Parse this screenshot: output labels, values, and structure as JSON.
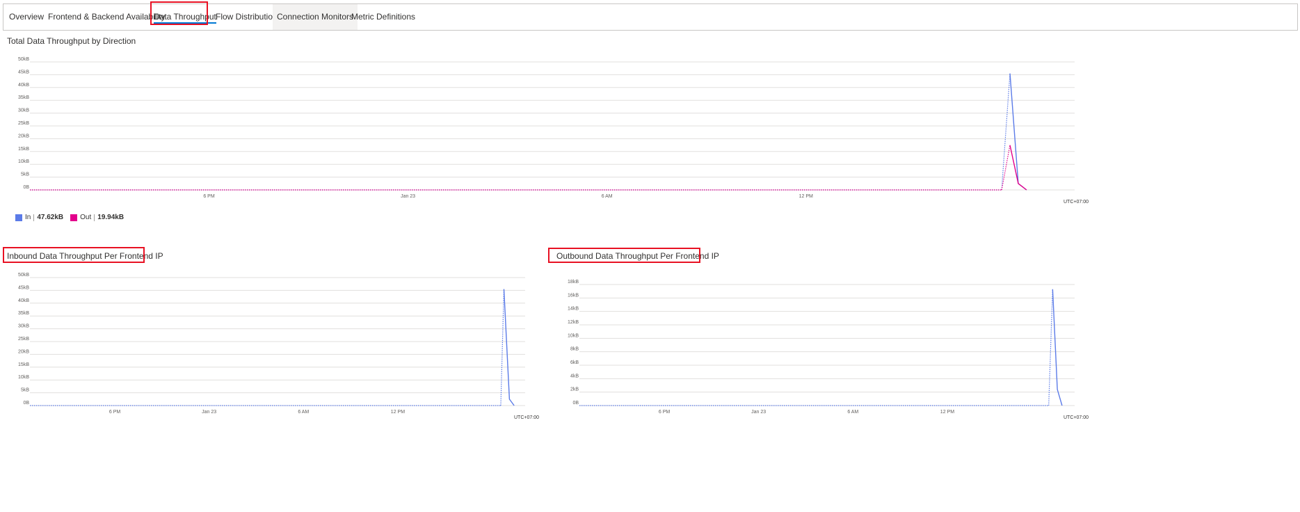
{
  "tabs": [
    {
      "label": "Overview"
    },
    {
      "label": "Frontend & Backend Availability"
    },
    {
      "label": "Data Throughput"
    },
    {
      "label": "Flow Distribution"
    },
    {
      "label": "Connection Monitors"
    },
    {
      "label": "Metric Definitions"
    }
  ],
  "active_tab": "Data Throughput",
  "colors": {
    "in": "#5b7be8",
    "out": "#e3008c",
    "highlight": "#e81123",
    "grid": "#e1dfdd"
  },
  "sections": {
    "total": {
      "title": "Total Data Throughput by Direction"
    },
    "inbound": {
      "title": "Inbound Data Throughput Per Frontend IP"
    },
    "outbound": {
      "title": "Outbound Data Throughput Per Frontend IP"
    }
  },
  "legend": {
    "in_label": "In",
    "in_value": "47.62kB",
    "out_label": "Out",
    "out_value": "19.94kB"
  },
  "chart_data": [
    {
      "type": "line",
      "title": "Total Data Throughput by Direction",
      "xlabel": "",
      "ylabel": "",
      "ylim": [
        0,
        50
      ],
      "y_unit": "kB",
      "yticks": [
        "50kB",
        "45kB",
        "40kB",
        "35kB",
        "30kB",
        "25kB",
        "20kB",
        "15kB",
        "10kB",
        "5kB",
        "0B"
      ],
      "xticks": [
        "6 PM",
        "Jan 23",
        "6 AM",
        "12 PM"
      ],
      "timezone_label": "UTC+07:00",
      "x_range_hours": [
        12.6,
        44.1
      ],
      "xtick_hours": [
        18,
        24,
        30,
        36
      ],
      "legend_position": "bottom-left",
      "grid": true,
      "series": [
        {
          "name": "In",
          "color": "#5b7be8",
          "x_hours": [
            41.9,
            42.15,
            42.4,
            42.65
          ],
          "values": [
            0,
            45.5,
            2.5,
            0
          ]
        },
        {
          "name": "Out",
          "color": "#e3008c",
          "x_hours": [
            41.9,
            42.15,
            42.4,
            42.65
          ],
          "values": [
            0,
            17.5,
            2.5,
            0
          ]
        }
      ],
      "dotted_baseline_until_hours": 41.9
    },
    {
      "type": "line",
      "title": "Inbound Data Throughput Per Frontend IP",
      "ylim": [
        0,
        50
      ],
      "y_unit": "kB",
      "yticks": [
        "50kB",
        "45kB",
        "40kB",
        "35kB",
        "30kB",
        "25kB",
        "20kB",
        "15kB",
        "10kB",
        "5kB",
        "0B"
      ],
      "xticks": [
        "6 PM",
        "Jan 23",
        "6 AM",
        "12 PM"
      ],
      "timezone_label": "UTC+07:00",
      "x_range_hours": [
        12.6,
        44.1
      ],
      "xtick_hours": [
        18,
        24,
        30,
        36
      ],
      "grid": true,
      "series": [
        {
          "color": "#5b7be8",
          "x_hours": [
            42.55,
            42.75,
            43.1,
            43.4
          ],
          "values": [
            0,
            45.5,
            2.5,
            0
          ]
        }
      ],
      "dotted_baseline_until_hours": 42.55
    },
    {
      "type": "line",
      "title": "Outbound Data Throughput Per Frontend IP",
      "ylim": [
        0,
        18
      ],
      "y_unit": "kB",
      "yticks": [
        "18kB",
        "16kB",
        "14kB",
        "12kB",
        "10kB",
        "8kB",
        "6kB",
        "4kB",
        "2kB",
        "0B"
      ],
      "xticks": [
        "6 PM",
        "Jan 23",
        "6 AM",
        "12 PM"
      ],
      "timezone_label": "UTC+07:00",
      "x_range_hours": [
        12.6,
        44.1
      ],
      "xtick_hours": [
        18,
        24,
        30,
        36
      ],
      "grid": true,
      "series": [
        {
          "color": "#5b7be8",
          "x_hours": [
            42.45,
            42.7,
            43.0,
            43.3
          ],
          "values": [
            0,
            17.3,
            2.4,
            0
          ]
        }
      ],
      "dotted_baseline_until_hours": 42.45
    }
  ]
}
